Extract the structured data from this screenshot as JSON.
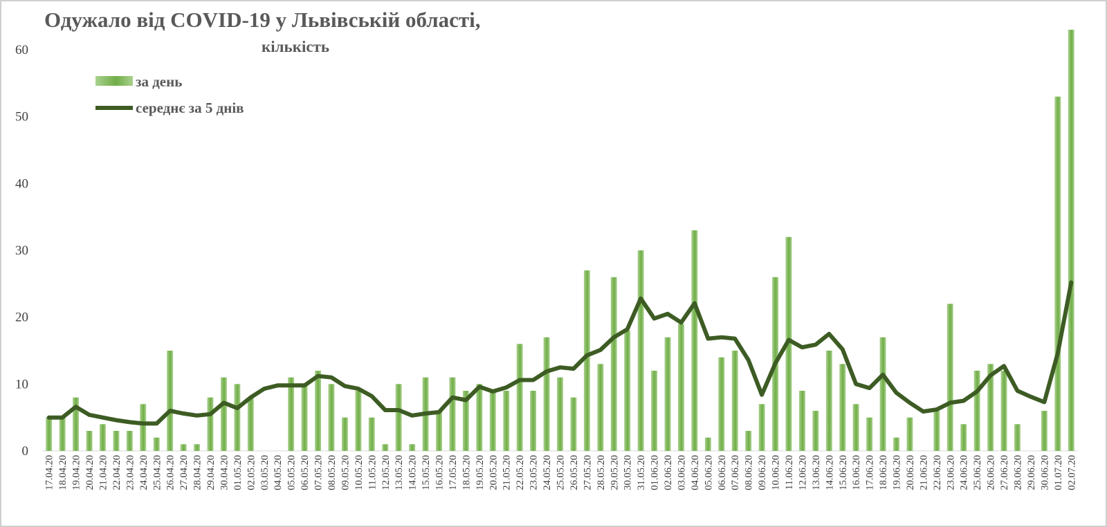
{
  "colors": {
    "bar": "#70ad47",
    "bar_light": "#a9d18e",
    "line": "#3d5c24",
    "frame": "#bfbfbf",
    "text": "#595959"
  },
  "chart_data": {
    "type": "bar",
    "title": "Одужало від COVID-19 у Львівській області,",
    "subtitle": "кількість",
    "xlabel": "",
    "ylabel": "",
    "ylim": [
      0,
      63
    ],
    "yticks": [
      0,
      10,
      20,
      30,
      40,
      50,
      60
    ],
    "grid": false,
    "legend_position": "top-left",
    "categories": [
      "17.04.20",
      "18.04.20",
      "19.04.20",
      "20.04.20",
      "21.04.20",
      "22.04.20",
      "23.04.20",
      "24.04.20",
      "25.04.20",
      "26.04.20",
      "27.04.20",
      "28.04.20",
      "29.04.20",
      "30.04.20",
      "01.05.20",
      "02.05.20",
      "03.05.20",
      "04.05.20",
      "05.05.20",
      "06.05.20",
      "07.05.20",
      "08.05.20",
      "09.05.20",
      "10.05.20",
      "11.05.20",
      "12.05.20",
      "13.05.20",
      "14.05.20",
      "15.05.20",
      "16.05.20",
      "17.05.20",
      "18.05.20",
      "19.05.20",
      "20.05.20",
      "21.05.20",
      "22.05.20",
      "23.05.20",
      "24.05.20",
      "25.05.20",
      "26.05.20",
      "27.05.20",
      "28.05.20",
      "29.05.20",
      "30.05.20",
      "31.05.20",
      "01.06.20",
      "02.06.20",
      "03.06.20",
      "04.06.20",
      "05.06.20",
      "06.06.20",
      "07.06.20",
      "08.06.20",
      "09.06.20",
      "10.06.20",
      "11.06.20",
      "12.06.20",
      "13.06.20",
      "14.06.20",
      "15.06.20",
      "16.06.20",
      "17.06.20",
      "18.06.20",
      "19.06.20",
      "20.06.20",
      "21.06.20",
      "22.06.20",
      "23.06.20",
      "24.06.20",
      "25.06.20",
      "26.06.20",
      "27.06.20",
      "28.06.20",
      "29.06.20",
      "30.06.20",
      "01.07.20",
      "02.07.20"
    ],
    "series": [
      {
        "name": "за день",
        "type": "bar",
        "values": [
          5,
          5,
          8,
          3,
          4,
          3,
          3,
          7,
          2,
          15,
          1,
          1,
          8,
          11,
          10,
          8,
          0,
          0,
          11,
          10,
          12,
          10,
          5,
          9,
          5,
          1,
          10,
          1,
          11,
          6,
          11,
          9,
          10,
          9,
          9,
          16,
          9,
          17,
          11,
          8,
          27,
          13,
          26,
          18,
          30,
          12,
          17,
          19,
          33,
          2,
          14,
          15,
          3,
          7,
          26,
          32,
          9,
          6,
          15,
          13,
          7,
          5,
          17,
          2,
          5,
          0,
          6,
          22,
          4,
          12,
          13,
          12,
          4,
          0,
          6,
          53,
          63
        ]
      },
      {
        "name": "середнє за 5 днів",
        "type": "line",
        "values": [
          5,
          5,
          6.6,
          5.4,
          5,
          4.6,
          4.3,
          4.1,
          4.1,
          6,
          5.6,
          5.3,
          5.5,
          7.2,
          6.4,
          8,
          9.3,
          9.8,
          9.8,
          9.8,
          11.2,
          11,
          9.7,
          9.3,
          8.2,
          6.1,
          6.1,
          5.3,
          5.6,
          5.8,
          8,
          7.6,
          9.6,
          8.9,
          9.5,
          10.6,
          10.6,
          11.9,
          12.5,
          12.3,
          14.3,
          15.1,
          17,
          18.2,
          22.8,
          19.8,
          20.5,
          19.2,
          22.1,
          16.8,
          17,
          16.8,
          13.6,
          8.4,
          13.1,
          16.6,
          15.5,
          15.9,
          17.5,
          15.2,
          10,
          9.4,
          11.4,
          8.7,
          7.2,
          5.9,
          6.2,
          7.2,
          7.5,
          8.9,
          11.3,
          12.7,
          9,
          8.1,
          7.3,
          14.6,
          25.2
        ]
      }
    ]
  }
}
